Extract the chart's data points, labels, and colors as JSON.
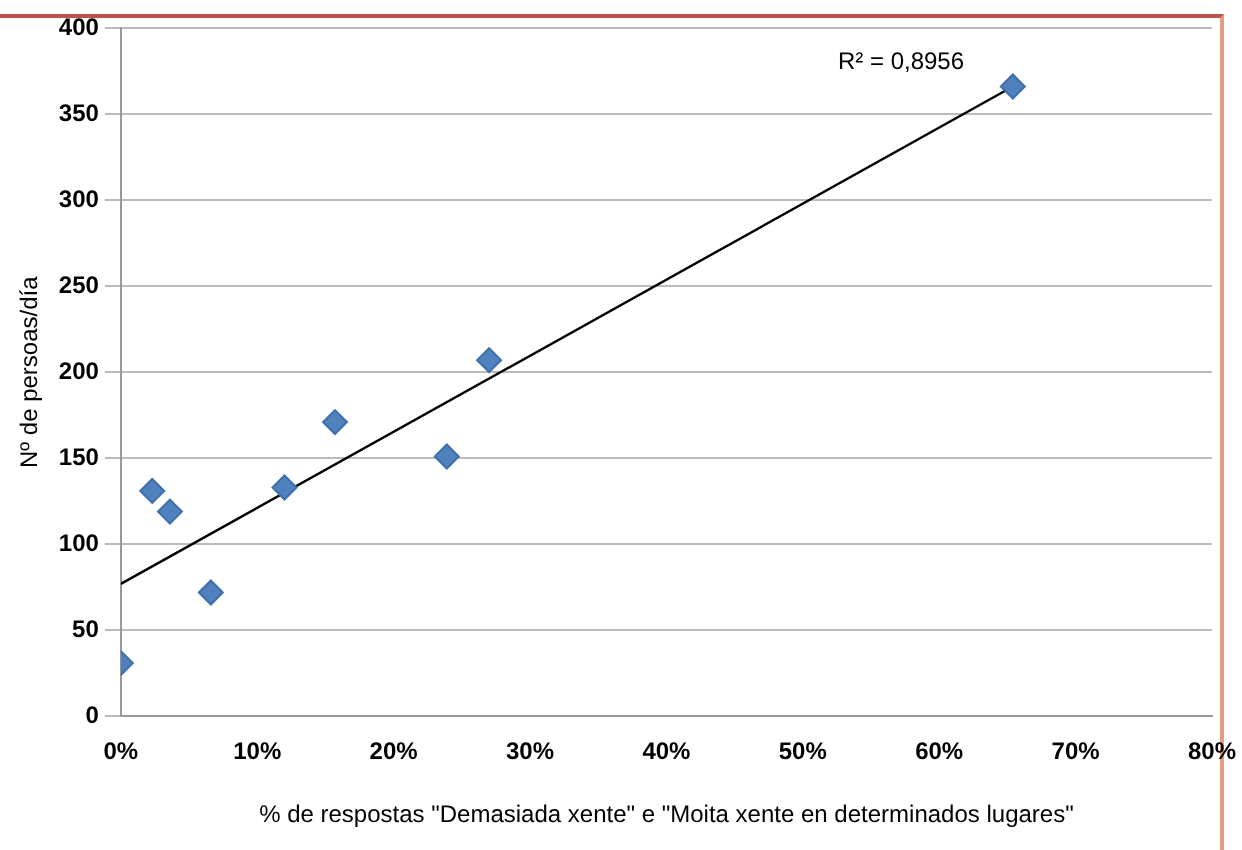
{
  "chart_data": {
    "type": "scatter",
    "xlabel": "% de respostas \"Demasiada xente\" e \"Moita xente en determinados lugares\"",
    "ylabel": "Nº de persoas/día",
    "x": [
      0,
      2.3,
      3.6,
      6.6,
      12,
      15.7,
      23.9,
      27,
      65.4
    ],
    "series": [
      {
        "color": "#4f81bd",
        "values": [
          31,
          131,
          119,
          72,
          133,
          171,
          151,
          207,
          366
        ],
        "marker": "diamond"
      },
      {
        "type": "line",
        "color": "#000000",
        "x": [
          0,
          65.4
        ],
        "values": [
          77,
          366
        ],
        "marker": "none"
      }
    ],
    "xlim": [
      0,
      80
    ],
    "xticks": [
      {
        "value": 0,
        "label": "0%"
      },
      {
        "value": 10,
        "label": "10%"
      },
      {
        "value": 20,
        "label": "20%"
      },
      {
        "value": 30,
        "label": "30%"
      },
      {
        "value": 40,
        "label": "40%"
      },
      {
        "value": 50,
        "label": "50%"
      },
      {
        "value": 60,
        "label": "60%"
      },
      {
        "value": 70,
        "label": "70%"
      },
      {
        "value": 80,
        "label": "80%"
      }
    ],
    "ylim": [
      0,
      400
    ],
    "yticks": [
      0,
      50,
      100,
      150,
      200,
      250,
      300,
      350,
      400
    ],
    "grid": "y",
    "legend": false,
    "annotations": [
      "R² = 0,8956"
    ]
  }
}
